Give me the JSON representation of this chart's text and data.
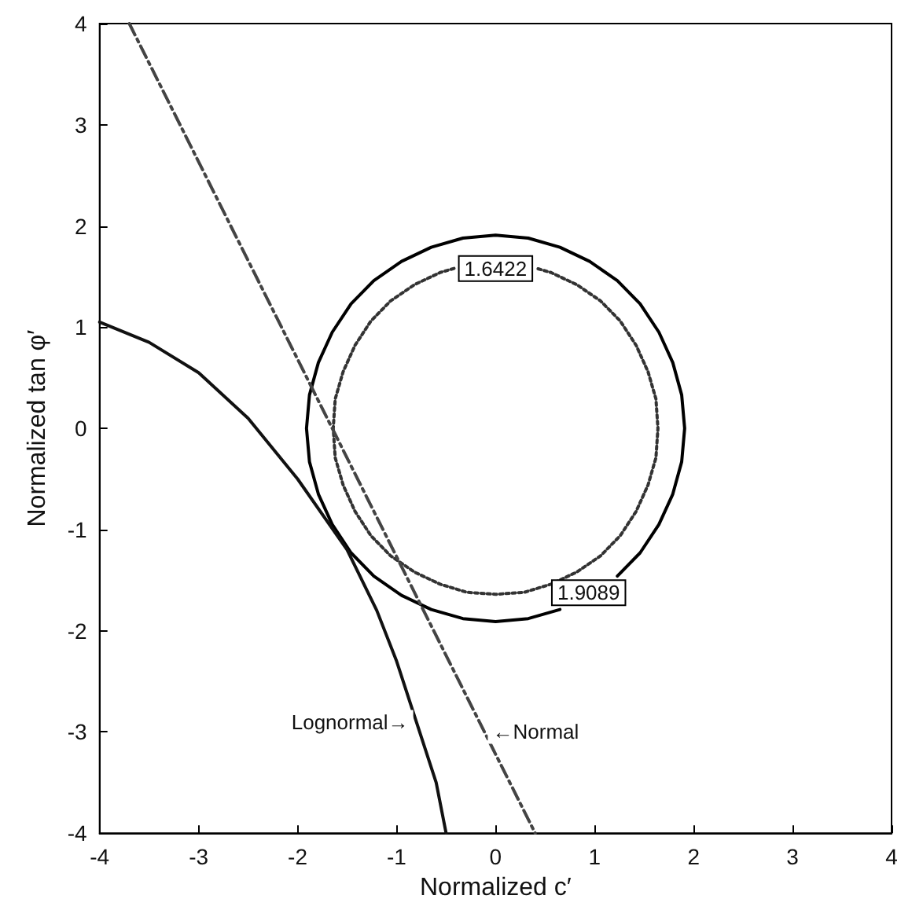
{
  "chart_data": {
    "type": "line",
    "xlabel": "Normalized c′",
    "ylabel": "Normalized tan φ′",
    "xlim": [
      -4,
      4
    ],
    "ylim": [
      -4,
      4
    ],
    "xticks": [
      -4,
      -3,
      -2,
      -1,
      0,
      1,
      2,
      3,
      4
    ],
    "yticks": [
      -4,
      -3,
      -2,
      -1,
      0,
      1,
      2,
      3,
      4
    ],
    "grid": false,
    "marker": "none",
    "series": [
      {
        "color": "#333333",
        "line_style": "dotted",
        "x": [
          -0.42,
          -0.56,
          -0.82,
          -1.06,
          -1.26,
          -1.42,
          -1.54,
          -1.62,
          -1.64,
          -1.62,
          -1.54,
          -1.42,
          -1.26,
          -1.06,
          -0.82,
          -0.56,
          -0.29,
          0,
          0.29,
          0.56,
          0.82,
          1.06,
          1.26,
          1.42,
          1.54,
          1.62,
          1.64,
          1.62,
          1.54,
          1.42,
          1.26,
          1.06,
          0.82,
          0.56,
          0.42
        ],
        "values": [
          1.58,
          1.54,
          1.42,
          1.26,
          1.06,
          0.82,
          0.56,
          0.29,
          0,
          -0.29,
          -0.56,
          -0.82,
          -1.06,
          -1.26,
          -1.42,
          -1.54,
          -1.62,
          -1.64,
          -1.62,
          -1.54,
          -1.42,
          -1.26,
          -1.06,
          -0.82,
          -0.56,
          -0.29,
          0,
          0.29,
          0.56,
          0.82,
          1.06,
          1.26,
          1.42,
          1.54,
          1.58
        ]
      },
      {
        "color": "#000000",
        "line_style": "solid",
        "x": [
          1.23,
          1.46,
          1.65,
          1.79,
          1.88,
          1.91,
          1.88,
          1.79,
          1.65,
          1.46,
          1.23,
          0.95,
          0.65,
          0.33,
          0,
          -0.33,
          -0.65,
          -0.95,
          -1.23,
          -1.46,
          -1.65,
          -1.79,
          -1.88,
          -1.91,
          -1.88,
          -1.79,
          -1.65,
          -1.46,
          -1.23,
          -0.95,
          -0.65,
          -0.33,
          0,
          0.33,
          0.65
        ],
        "values": [
          -1.46,
          -1.23,
          -0.95,
          -0.65,
          -0.33,
          0,
          0.33,
          0.65,
          0.95,
          1.23,
          1.46,
          1.65,
          1.79,
          1.88,
          1.91,
          1.88,
          1.79,
          1.65,
          1.46,
          1.23,
          0.95,
          0.65,
          0.33,
          0,
          -0.33,
          -0.65,
          -0.95,
          -1.23,
          -1.46,
          -1.65,
          -1.79,
          -1.88,
          -1.91,
          -1.88,
          -1.79
        ]
      },
      {
        "color": "#111111",
        "line_style": "solid",
        "x": [
          -4,
          -3.5,
          -3,
          -2.5,
          -2,
          -1.5,
          -1.2,
          -1,
          -0.8,
          -0.6,
          -0.5
        ],
        "values": [
          1.05,
          0.85,
          0.55,
          0.1,
          -0.5,
          -1.2,
          -1.8,
          -2.3,
          -2.9,
          -3.5,
          -4
        ]
      },
      {
        "color": "#444444",
        "line_style": "dashed",
        "x": [
          -3.7,
          0.4
        ],
        "values": [
          4,
          -4
        ]
      }
    ],
    "annotations": [
      "1.6422",
      "1.9089",
      {
        "text": "Lognormal→",
        "x": -0.8,
        "y": -2.9
      },
      {
        "text": "←Normal",
        "x": -0.11,
        "y": -3.0
      }
    ]
  }
}
